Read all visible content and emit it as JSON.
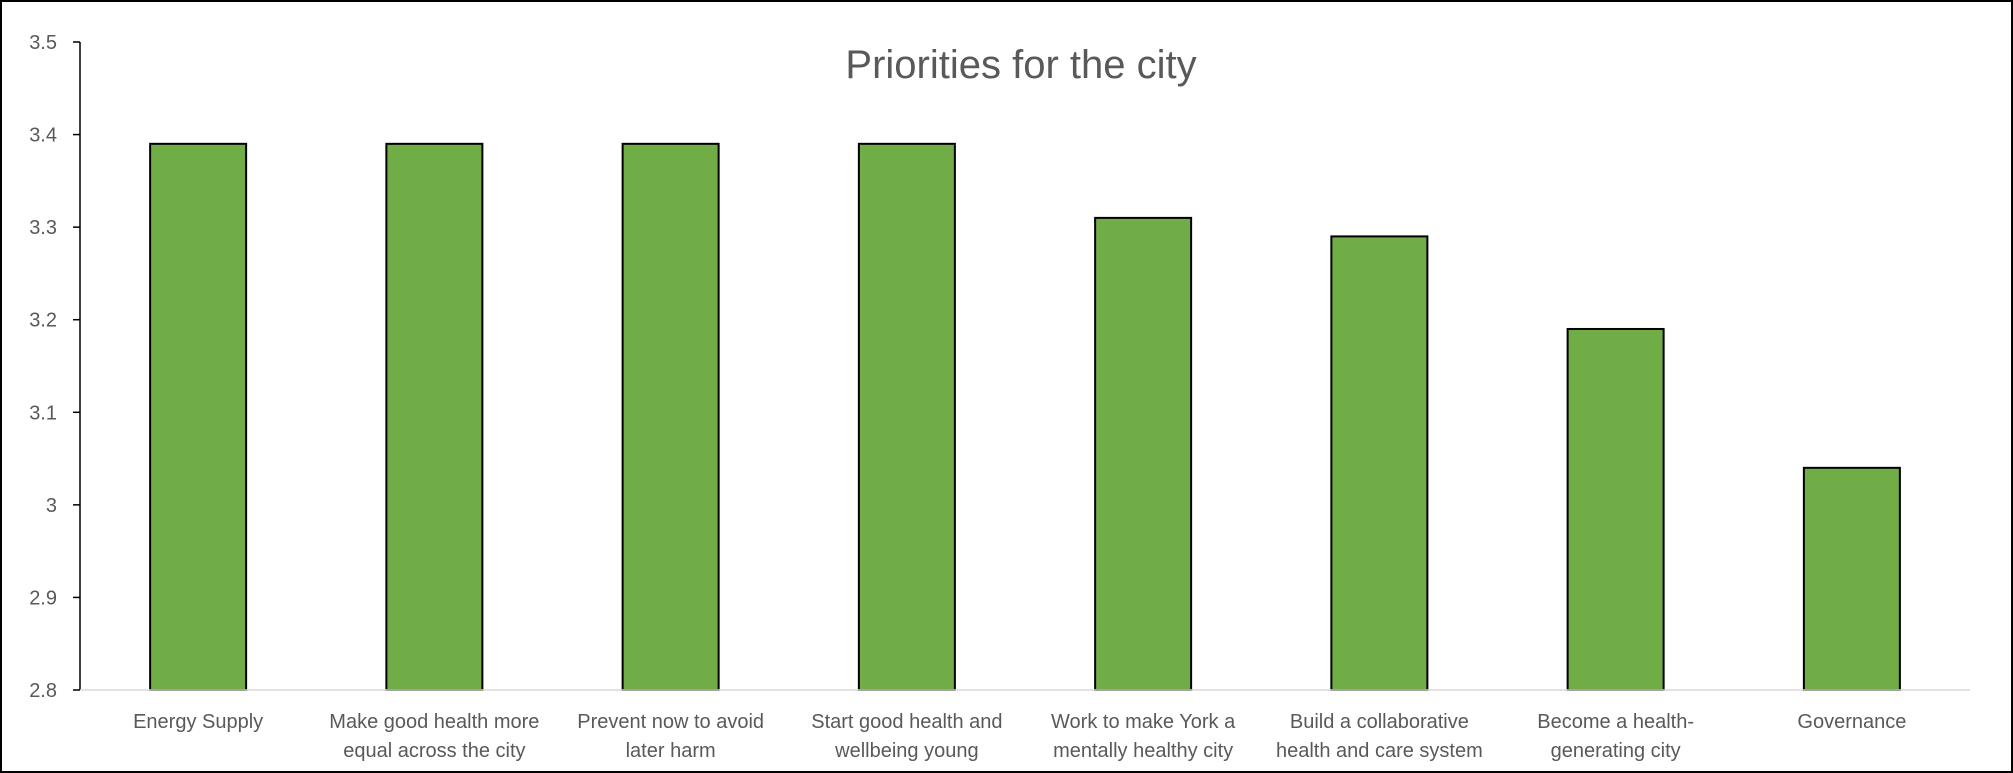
{
  "chart_data": {
    "type": "bar",
    "title": "Priorities for the city",
    "xlabel": "",
    "ylabel": "",
    "categories": [
      [
        "Energy Supply"
      ],
      [
        "Make good health more",
        "equal across the city"
      ],
      [
        "Prevent now to avoid",
        "later harm"
      ],
      [
        "Start good health and",
        "wellbeing young"
      ],
      [
        "Work to make York a",
        "mentally healthy city"
      ],
      [
        "Build a collaborative",
        "health and care system"
      ],
      [
        "Become a health-",
        "generating city"
      ],
      [
        "Governance"
      ]
    ],
    "values": [
      3.39,
      3.39,
      3.39,
      3.39,
      3.31,
      3.29,
      3.19,
      3.04
    ],
    "ylim": [
      2.8,
      3.5
    ],
    "yticks": [
      "2.8",
      "2.9",
      "3",
      "3.1",
      "3.2",
      "3.3",
      "3.4",
      "3.5"
    ],
    "grid": false,
    "legend": "none",
    "colors": {
      "bar_fill": "#70AD47",
      "bar_stroke": "#000000",
      "axis": "#000000",
      "text": "#595959"
    }
  }
}
